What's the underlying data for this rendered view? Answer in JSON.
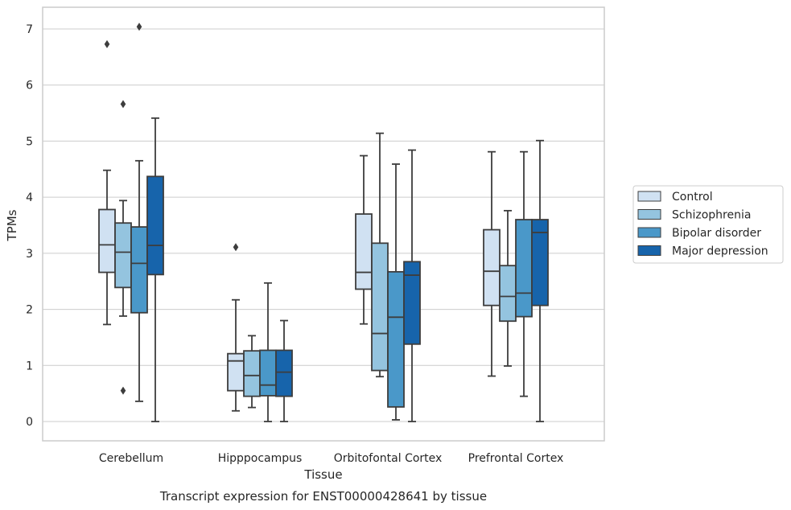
{
  "chart_data": {
    "type": "box",
    "xlabel": "Tissue",
    "ylabel": "TPMs",
    "caption": "Transcript expression for ENST00000428641 by tissue",
    "ylim": [
      -0.35,
      7.4
    ],
    "yticks": [
      0,
      1,
      2,
      3,
      4,
      5,
      6,
      7
    ],
    "grid": true,
    "legend_position": "right",
    "categories": [
      "Cerebellum",
      "Hipppocampus",
      "Orbitofontal Cortex",
      "Prefrontal Cortex"
    ],
    "series": [
      {
        "name": "Control",
        "color": "#d0e1f2",
        "boxes": [
          {
            "whislo": 1.73,
            "q1": 2.66,
            "med": 3.15,
            "q3": 3.78,
            "whishi": 4.48,
            "fliers": [
              6.73
            ]
          },
          {
            "whislo": 0.19,
            "q1": 0.55,
            "med": 1.08,
            "q3": 1.21,
            "whishi": 2.17,
            "fliers": [
              3.11
            ]
          },
          {
            "whislo": 1.74,
            "q1": 2.36,
            "med": 2.66,
            "q3": 3.7,
            "whishi": 4.74,
            "fliers": []
          },
          {
            "whislo": 0.81,
            "q1": 2.07,
            "med": 2.68,
            "q3": 3.42,
            "whishi": 4.81,
            "fliers": []
          }
        ]
      },
      {
        "name": "Schizophrenia",
        "color": "#94c4df",
        "boxes": [
          {
            "whislo": 1.88,
            "q1": 2.39,
            "med": 3.02,
            "q3": 3.54,
            "whishi": 3.94,
            "fliers": [
              5.66,
              0.55
            ]
          },
          {
            "whislo": 0.25,
            "q1": 0.45,
            "med": 0.82,
            "q3": 1.26,
            "whishi": 1.53,
            "fliers": []
          },
          {
            "whislo": 0.8,
            "q1": 0.91,
            "med": 1.57,
            "q3": 3.18,
            "whishi": 5.14,
            "fliers": []
          },
          {
            "whislo": 0.99,
            "q1": 1.79,
            "med": 2.23,
            "q3": 2.78,
            "whishi": 3.76,
            "fliers": []
          }
        ]
      },
      {
        "name": "Bipolar disorder",
        "color": "#4a98c9",
        "boxes": [
          {
            "whislo": 0.36,
            "q1": 1.94,
            "med": 2.82,
            "q3": 3.47,
            "whishi": 4.65,
            "fliers": [
              7.04
            ]
          },
          {
            "whislo": 0.0,
            "q1": 0.46,
            "med": 0.65,
            "q3": 1.27,
            "whishi": 2.47,
            "fliers": []
          },
          {
            "whislo": 0.03,
            "q1": 0.26,
            "med": 1.86,
            "q3": 2.67,
            "whishi": 4.59,
            "fliers": []
          },
          {
            "whislo": 0.45,
            "q1": 1.87,
            "med": 2.29,
            "q3": 3.6,
            "whishi": 4.81,
            "fliers": []
          }
        ]
      },
      {
        "name": "Major depression",
        "color": "#1764ab",
        "boxes": [
          {
            "whislo": 0.0,
            "q1": 2.62,
            "med": 3.14,
            "q3": 4.37,
            "whishi": 5.41,
            "fliers": []
          },
          {
            "whislo": 0.0,
            "q1": 0.45,
            "med": 0.88,
            "q3": 1.27,
            "whishi": 1.8,
            "fliers": []
          },
          {
            "whislo": 0.0,
            "q1": 1.38,
            "med": 2.61,
            "q3": 2.85,
            "whishi": 4.84,
            "fliers": []
          },
          {
            "whislo": 0.0,
            "q1": 2.07,
            "med": 3.37,
            "q3": 3.6,
            "whishi": 5.01,
            "fliers": []
          }
        ]
      }
    ]
  }
}
